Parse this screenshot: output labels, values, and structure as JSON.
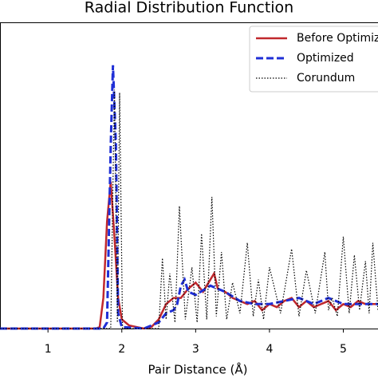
{
  "chart_data": {
    "type": "line",
    "title": "Radial Distribution Function",
    "x_label": "Pair Distance (Å)",
    "xlim": [
      0.35,
      5.47
    ],
    "ylim": [
      0,
      10
    ],
    "xticks": [
      1,
      2,
      3,
      4,
      5
    ],
    "legend": "upper right",
    "series": [
      {
        "name": "Before Optimization",
        "color": "#c0282d",
        "linestyle": "solid",
        "x": [
          0.35,
          1.65,
          1.7,
          1.75,
          1.8,
          1.85,
          1.9,
          1.95,
          2.0,
          2.1,
          2.2,
          2.3,
          2.4,
          2.5,
          2.6,
          2.7,
          2.8,
          2.9,
          3.0,
          3.1,
          3.2,
          3.25,
          3.3,
          3.4,
          3.5,
          3.6,
          3.7,
          3.8,
          3.9,
          4.0,
          4.1,
          4.2,
          4.3,
          4.4,
          4.5,
          4.6,
          4.7,
          4.8,
          4.9,
          5.0,
          5.1,
          5.2,
          5.3,
          5.47
        ],
        "values": [
          0,
          0,
          0.05,
          1.0,
          3.5,
          4.8,
          3.0,
          1.0,
          0.3,
          0.1,
          0.05,
          0,
          0.05,
          0.3,
          0.8,
          1.0,
          1.0,
          1.3,
          1.5,
          1.2,
          1.6,
          1.8,
          1.3,
          1.2,
          1.0,
          0.9,
          0.8,
          0.9,
          0.6,
          0.8,
          0.7,
          0.9,
          1.0,
          0.7,
          0.9,
          0.7,
          0.8,
          0.9,
          0.6,
          0.8,
          0.7,
          0.9,
          0.8,
          0.8
        ]
      },
      {
        "name": "Optimized",
        "color": "#1f2fd6",
        "linestyle": "dashed",
        "x": [
          0.35,
          1.75,
          1.8,
          1.85,
          1.88,
          1.92,
          1.95,
          2.0,
          2.3,
          2.5,
          2.6,
          2.7,
          2.75,
          2.8,
          2.85,
          2.9,
          3.0,
          3.2,
          3.4,
          3.6,
          3.8,
          4.0,
          4.2,
          4.4,
          4.6,
          4.8,
          5.0,
          5.2,
          5.47
        ],
        "values": [
          0,
          0,
          0.2,
          6.0,
          8.6,
          6.0,
          0.5,
          0.05,
          0,
          0.2,
          0.5,
          0.6,
          0.8,
          1.4,
          1.6,
          1.2,
          1.1,
          1.4,
          1.2,
          0.9,
          0.8,
          0.8,
          0.9,
          1.0,
          0.8,
          1.0,
          0.8,
          0.8,
          0.8
        ]
      },
      {
        "name": "Corundum",
        "color": "#000000",
        "linestyle": "dotted",
        "x": [
          0.35,
          1.85,
          1.9,
          1.94,
          1.97,
          2.01,
          2.5,
          2.55,
          2.6,
          2.65,
          2.72,
          2.78,
          2.86,
          2.95,
          3.02,
          3.08,
          3.15,
          3.22,
          3.28,
          3.35,
          3.42,
          3.5,
          3.6,
          3.7,
          3.78,
          3.85,
          3.92,
          4.0,
          4.15,
          4.3,
          4.4,
          4.5,
          4.62,
          4.75,
          4.8,
          4.85,
          4.92,
          5.0,
          5.08,
          5.15,
          5.22,
          5.3,
          5.35,
          5.4,
          5.47
        ],
        "values": [
          0,
          0,
          7.8,
          0.2,
          7.7,
          0,
          0,
          2.3,
          0.3,
          1.8,
          0.2,
          4.0,
          0.3,
          2.0,
          0.2,
          3.1,
          0.3,
          4.3,
          0.4,
          2.5,
          0.3,
          1.5,
          0.5,
          2.8,
          0.4,
          1.6,
          0.3,
          2.0,
          0.5,
          2.6,
          0.4,
          1.9,
          0.5,
          2.5,
          0.6,
          1.0,
          0.4,
          3.0,
          0.5,
          2.4,
          0.6,
          2.2,
          0.5,
          2.8,
          0.6
        ]
      }
    ]
  }
}
